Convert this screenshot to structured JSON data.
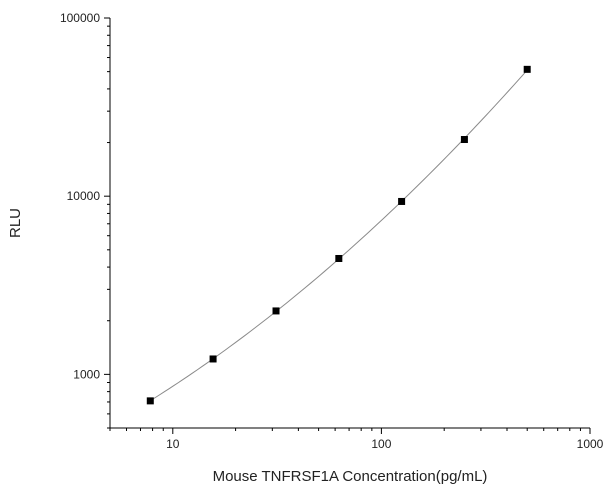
{
  "chart_data": {
    "type": "scatter",
    "title": "",
    "xlabel": "Mouse TNFRSF1A Concentration(pg/mL)",
    "ylabel": "RLU",
    "x_scale": "log",
    "y_scale": "log",
    "xlim": [
      5,
      1000
    ],
    "ylim": [
      500,
      100000
    ],
    "grid": false,
    "legend": "none",
    "x_ticks": [
      {
        "value": 10,
        "label": "10"
      },
      {
        "value": 100,
        "label": "100"
      },
      {
        "value": 1000,
        "label": "1000"
      }
    ],
    "y_ticks": [
      {
        "value": 1000,
        "label": "1000"
      },
      {
        "value": 10000,
        "label": "10000"
      },
      {
        "value": 100000,
        "label": "100000"
      }
    ],
    "series": [
      {
        "type": "scatter",
        "marker": "square",
        "color": "#000000",
        "x": [
          7.8,
          15.6,
          31.25,
          62.5,
          125,
          250,
          500
        ],
        "y": [
          710,
          1220,
          2270,
          4470,
          9340,
          20800,
          51500
        ]
      },
      {
        "type": "line",
        "style": "fitted-curve",
        "color": "#8a8a8a",
        "x": [
          7.8,
          15.6,
          31.25,
          62.5,
          125,
          250,
          500
        ],
        "y": [
          710,
          1220,
          2270,
          4470,
          9340,
          20800,
          51500
        ]
      }
    ]
  }
}
